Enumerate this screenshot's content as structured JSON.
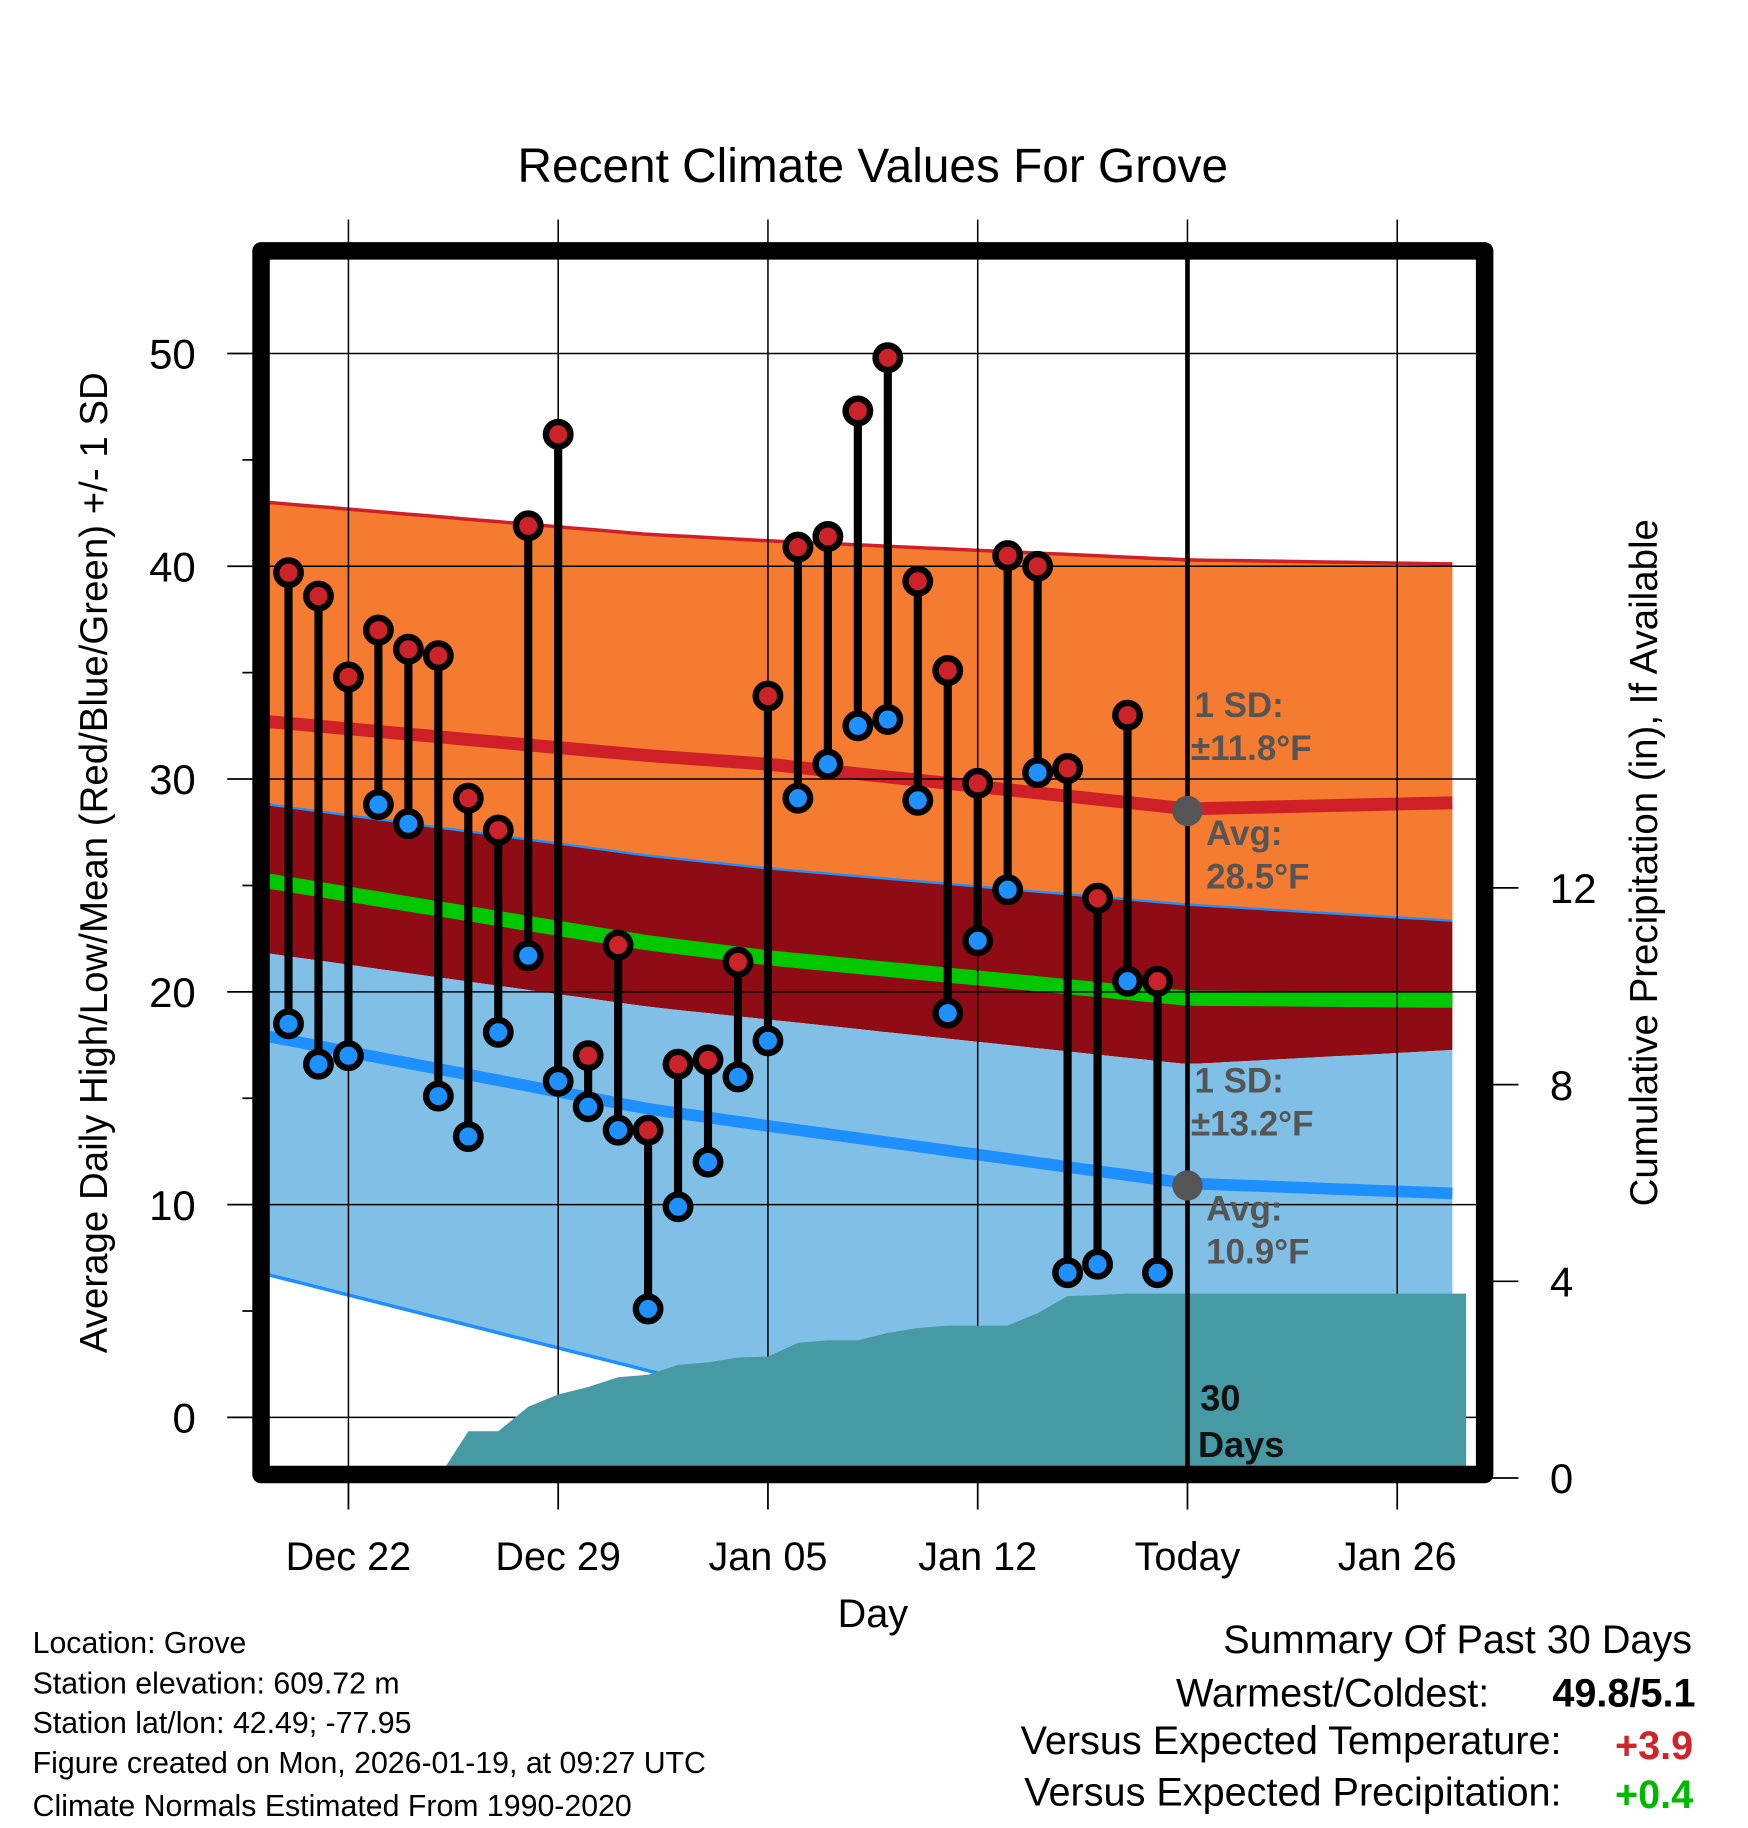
{
  "chart_data": {
    "type": "line",
    "title": "Recent Climate Values For Grove",
    "xlabel": "Day",
    "ylabel": "Average Daily High/Low/Mean (Red/Blue/Green) +/- 1 SD",
    "y2label": "Cumulative Precipitation (in), If Available",
    "x_ticks": [
      {
        "day": 0,
        "label": "Dec 22"
      },
      {
        "day": 7,
        "label": "Dec 29"
      },
      {
        "day": 14,
        "label": "Jan 05"
      },
      {
        "day": 21,
        "label": "Jan 12"
      },
      {
        "day": 28,
        "label": "Today"
      },
      {
        "day": 35,
        "label": "Jan 26"
      }
    ],
    "xlim_days_from_dec22": [
      -2.66,
      37.3
    ],
    "ylim": [
      -2.3,
      54.4
    ],
    "y_ticks": [
      0,
      10,
      20,
      30,
      40,
      50
    ],
    "y_minor_ticks": [
      5,
      15,
      25,
      35,
      45
    ],
    "y2lim": [
      0,
      23.5
    ],
    "y2_ticks": [
      0,
      4,
      8,
      12
    ],
    "grid": true,
    "observed": {
      "start_day": -2,
      "highs": [
        39.7,
        38.6,
        34.8,
        37.0,
        36.1,
        35.8,
        29.1,
        27.6,
        41.9,
        46.2,
        17.0,
        22.2,
        13.5,
        16.6,
        16.8,
        21.4,
        33.9,
        40.9,
        41.4,
        47.3,
        49.8,
        39.3,
        35.1,
        29.8,
        40.5,
        40.0,
        30.5,
        24.4,
        33.0,
        20.5
      ],
      "lows": [
        18.5,
        16.6,
        17.0,
        28.8,
        27.9,
        15.1,
        13.2,
        18.1,
        21.7,
        15.8,
        14.6,
        13.5,
        5.1,
        9.9,
        12.0,
        16.0,
        17.7,
        29.1,
        30.7,
        32.5,
        32.8,
        29.0,
        19.0,
        22.4,
        24.8,
        30.3,
        6.8,
        7.2,
        20.5,
        6.8
      ]
    },
    "normals": {
      "days": [
        -2.66,
        10,
        14,
        28,
        37.3
      ],
      "high_plus_sd": [
        43.0,
        41.5,
        41.2,
        40.3,
        40.1
      ],
      "high": [
        32.7,
        31.1,
        30.7,
        28.6,
        28.9
      ],
      "high_minus_sd": [
        28.8,
        26.4,
        25.8,
        24.1,
        23.3
      ],
      "mean": [
        25.2,
        22.3,
        21.6,
        19.7,
        19.6
      ],
      "low_plus_sd": [
        21.8,
        19.3,
        18.7,
        16.6,
        17.3
      ],
      "low": [
        17.9,
        14.5,
        13.7,
        11.0,
        10.5
      ],
      "low_minus_sd": [
        6.7,
        2.2,
        0.8,
        -4.0,
        -4.5
      ]
    },
    "precip": {
      "days": [
        3,
        4,
        5,
        6,
        7,
        8,
        9,
        10,
        11,
        12,
        13,
        14,
        15,
        16,
        17,
        18,
        19,
        20,
        21,
        22,
        23,
        24,
        25,
        26,
        27,
        37.3
      ],
      "cumulative": [
        0,
        0.95,
        0.95,
        1.45,
        1.7,
        1.85,
        2.05,
        2.1,
        2.3,
        2.35,
        2.45,
        2.47,
        2.75,
        2.8,
        2.8,
        2.95,
        3.05,
        3.1,
        3.1,
        3.1,
        3.35,
        3.7,
        3.72,
        3.75,
        3.75,
        3.75
      ]
    },
    "annotations": {
      "high_sd_label": "1 SD:",
      "high_sd_value": "±11.8°F",
      "high_avg_label": "Avg:",
      "high_avg_value": "28.5°F",
      "high_avg": 28.5,
      "low_sd_label": "1 SD:",
      "low_sd_value": "±13.2°F",
      "low_avg_label": "Avg:",
      "low_avg_value": "10.9°F",
      "low_avg": 10.9,
      "period_number": "30",
      "period_unit": "Days"
    },
    "colors": {
      "orange_band": "#F47B30",
      "darkred_band": "#900C14",
      "lightblue_band": "#80C0E6",
      "precip": "#4799A3",
      "high_line": "#CF2027",
      "mean_line": "#00C800",
      "low_line": "#1E8FFF",
      "high_dot": "#CC2229",
      "low_dot": "#1E90FF"
    }
  },
  "info": {
    "location": "Location: Grove",
    "elevation": "Station elevation: 609.72 m",
    "latlon": "Station lat/lon: 42.49; -77.95",
    "created": "Figure created on Mon, 2026-01-19, at 09:27 UTC",
    "normals": "Climate Normals Estimated From 1990-2020"
  },
  "summary": {
    "title": "Summary Of Past 30 Days",
    "warmest_coldest_label": "Warmest/Coldest:",
    "warmest_coldest_value": "49.8/5.1",
    "temp_label": "Versus Expected Temperature:",
    "temp_value": "+3.9",
    "temp_color": "#D0232A",
    "precip_label": "Versus Expected Precipitation:",
    "precip_value": "+0.4",
    "precip_color": "#00B800"
  }
}
